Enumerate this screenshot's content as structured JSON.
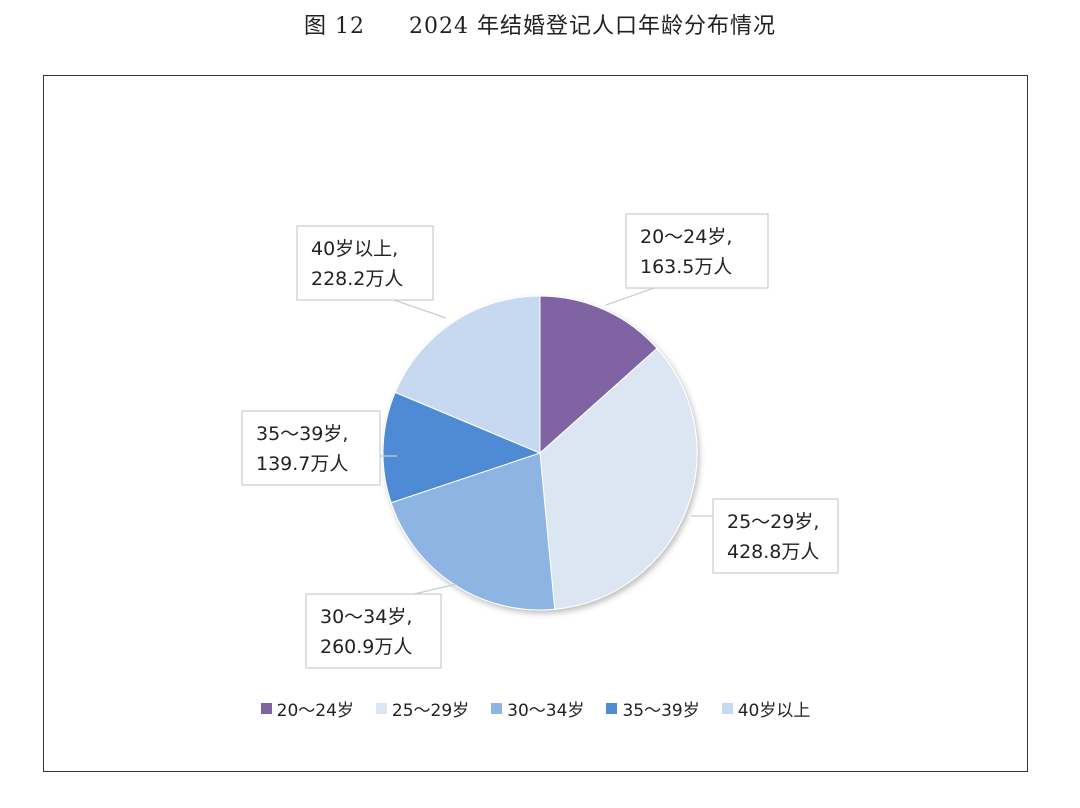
{
  "figure": {
    "number": "图 12",
    "title": "2024 年结婚登记人口年龄分布情况"
  },
  "chart_data": {
    "type": "pie",
    "unit": "万人",
    "categories": [
      "20～24岁",
      "25～29岁",
      "30～34岁",
      "35～39岁",
      "40岁以上"
    ],
    "values": [
      163.5,
      428.8,
      260.9,
      139.7,
      228.2
    ],
    "colors": [
      "#8064a2",
      "#dce6f2",
      "#8eb4e3",
      "#4f8bd4",
      "#c6d9f1"
    ],
    "data_labels": [
      [
        "20～24岁,",
        "163.5万人"
      ],
      [
        "25～29岁,",
        "428.8万人"
      ],
      [
        "30～34岁,",
        "260.9万人"
      ],
      [
        "35～39岁,",
        "139.7万人"
      ],
      [
        "40岁以上,",
        "228.2万人"
      ]
    ],
    "legend_position": "bottom"
  }
}
